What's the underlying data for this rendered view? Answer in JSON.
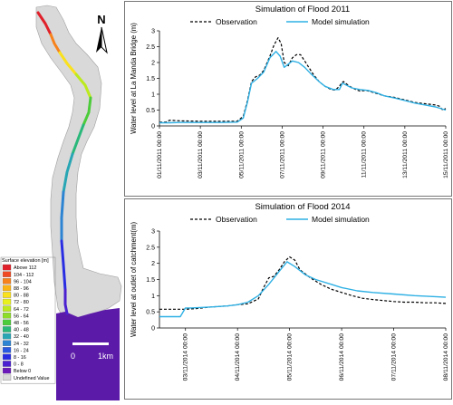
{
  "map": {
    "north_label": "N",
    "legend_title": "Surface elevation [m]",
    "legend": [
      {
        "label": "Above 112",
        "color": "#e0202a"
      },
      {
        "label": "104 - 112",
        "color": "#f04a24"
      },
      {
        "label": "96 - 104",
        "color": "#f7821c"
      },
      {
        "label": "88 - 96",
        "color": "#fab414"
      },
      {
        "label": "80 - 88",
        "color": "#fae11e"
      },
      {
        "label": "72 - 80",
        "color": "#e8f01e"
      },
      {
        "label": "64 - 72",
        "color": "#bcea1e"
      },
      {
        "label": "56 - 64",
        "color": "#8cdc2a"
      },
      {
        "label": "48 - 56",
        "color": "#4ccc3a"
      },
      {
        "label": "40 - 48",
        "color": "#2ab87a"
      },
      {
        "label": "32 - 40",
        "color": "#28a6b4"
      },
      {
        "label": "24 - 32",
        "color": "#2c84d2"
      },
      {
        "label": "16 - 24",
        "color": "#2a5ae0"
      },
      {
        "label": "8 - 16",
        "color": "#2a2ee2"
      },
      {
        "label": "0 - 8",
        "color": "#4a20d0"
      },
      {
        "label": "Below 0",
        "color": "#6a18b8"
      },
      {
        "label": "Undefined Value",
        "color": "#d8d8d8"
      }
    ],
    "scale_start": "0",
    "scale_end": "1km",
    "basin_color": "#d9d9d9",
    "lake_color": "#5c1aa8"
  },
  "chart_data": [
    {
      "type": "line",
      "title": "Simulation of Flood 2011",
      "ylabel": "Water level at La Manda Bridge (m)",
      "xlabel": "",
      "ylim": [
        0,
        3
      ],
      "yticks": [
        "0",
        "0.5",
        "1",
        "1.5",
        "2",
        "2.5",
        "3"
      ],
      "x_ticks": [
        "01/11/2011 00:00",
        "03/11/2011 00:00",
        "05/11/2011 00:00",
        "07/11/2011 00:00",
        "09/11/2011 00:00",
        "11/11/2011 00:00",
        "13/11/2011 00:00",
        "15/11/2011 00:00"
      ],
      "x_unit": "days since 01/11/2011 00:00",
      "xlim": [
        0,
        14
      ],
      "grid": false,
      "legend_position": "top",
      "series": [
        {
          "name": "Observation",
          "style": "dashed",
          "color": "#000000",
          "x": [
            0,
            0.3,
            0.5,
            1,
            2,
            3,
            3.8,
            4.1,
            4.3,
            4.5,
            4.7,
            4.9,
            5.1,
            5.4,
            5.6,
            5.8,
            5.95,
            6.1,
            6.3,
            6.5,
            6.7,
            6.9,
            7.1,
            7.3,
            7.5,
            7.8,
            8.1,
            8.4,
            8.6,
            8.8,
            8.9,
            9.0,
            9.1,
            9.3,
            9.6,
            9.8,
            10.1,
            10.5,
            11,
            11.5,
            12,
            12.5,
            13,
            13.5,
            13.7,
            13.85,
            14
          ],
          "y": [
            0.12,
            0.12,
            0.18,
            0.16,
            0.15,
            0.15,
            0.15,
            0.3,
            0.8,
            1.4,
            1.55,
            1.6,
            1.75,
            2.2,
            2.55,
            2.78,
            2.6,
            2.0,
            1.9,
            2.15,
            2.25,
            2.25,
            2.05,
            1.85,
            1.65,
            1.4,
            1.25,
            1.15,
            1.13,
            1.25,
            1.35,
            1.4,
            1.35,
            1.25,
            1.15,
            1.1,
            1.12,
            1.05,
            0.95,
            0.9,
            0.82,
            0.74,
            0.7,
            0.66,
            0.62,
            0.5,
            0.55
          ]
        },
        {
          "name": "Model simulation",
          "style": "solid",
          "color": "#2eb0e4",
          "x": [
            0,
            0.5,
            1,
            2,
            3,
            3.8,
            4.1,
            4.3,
            4.5,
            4.8,
            5.1,
            5.4,
            5.7,
            5.9,
            6.1,
            6.3,
            6.5,
            6.8,
            7.1,
            7.4,
            7.8,
            8.1,
            8.5,
            8.8,
            8.95,
            9.1,
            9.4,
            9.8,
            10.2,
            10.6,
            11,
            11.5,
            12,
            12.5,
            13,
            13.5,
            14
          ],
          "y": [
            0.1,
            0.1,
            0.11,
            0.11,
            0.11,
            0.12,
            0.25,
            0.75,
            1.35,
            1.5,
            1.7,
            2.15,
            2.35,
            2.2,
            1.85,
            1.95,
            2.05,
            2.0,
            1.85,
            1.65,
            1.4,
            1.25,
            1.15,
            1.15,
            1.35,
            1.3,
            1.2,
            1.15,
            1.12,
            1.05,
            0.95,
            0.88,
            0.8,
            0.72,
            0.66,
            0.6,
            0.5
          ]
        }
      ]
    },
    {
      "type": "line",
      "title": "Simulation of Flood 2014",
      "ylabel": "Water level at outlet of catchment(m)",
      "xlabel": "",
      "ylim": [
        0,
        3
      ],
      "yticks": [
        "0",
        "0.5",
        "1",
        "1.5",
        "2",
        "2.5",
        "3"
      ],
      "x_ticks": [
        "03/11/2014 00:00",
        "04/11/2014 00:00",
        "05/11/2014 00:00",
        "06/11/2014 00:00",
        "07/11/2014 00:00",
        "08/11/2014 00:00"
      ],
      "x_unit": "days since 03/11/2014 00:00",
      "xlim": [
        -0.5,
        5
      ],
      "grid": false,
      "legend_position": "top",
      "series": [
        {
          "name": "Observation",
          "style": "dashed",
          "color": "#000000",
          "x": [
            -0.5,
            -0.2,
            0,
            0.2,
            0.5,
            0.8,
            1.0,
            1.2,
            1.4,
            1.5,
            1.6,
            1.7,
            1.8,
            1.9,
            2.0,
            2.1,
            2.2,
            2.4,
            2.6,
            2.8,
            3.0,
            3.2,
            3.4,
            3.6,
            3.8,
            4.0,
            4.2,
            4.4,
            4.6,
            4.8,
            5.0
          ],
          "y": [
            0.58,
            0.58,
            0.58,
            0.6,
            0.65,
            0.68,
            0.72,
            0.75,
            0.9,
            1.25,
            1.55,
            1.6,
            1.8,
            2.05,
            2.2,
            2.1,
            1.8,
            1.55,
            1.35,
            1.2,
            1.1,
            1.0,
            0.92,
            0.88,
            0.85,
            0.82,
            0.8,
            0.8,
            0.78,
            0.78,
            0.76
          ]
        },
        {
          "name": "Model simulation",
          "style": "solid",
          "color": "#2eb0e4",
          "x": [
            -0.5,
            -0.1,
            0,
            0.1,
            0.5,
            0.8,
            1.0,
            1.2,
            1.4,
            1.6,
            1.8,
            1.95,
            2.1,
            2.3,
            2.5,
            2.8,
            3.0,
            3.3,
            3.6,
            4.0,
            4.4,
            4.8,
            5.0
          ],
          "y": [
            0.35,
            0.35,
            0.62,
            0.62,
            0.65,
            0.68,
            0.72,
            0.8,
            1.0,
            1.35,
            1.75,
            2.05,
            1.9,
            1.65,
            1.5,
            1.35,
            1.25,
            1.15,
            1.1,
            1.05,
            1.0,
            0.97,
            0.95
          ]
        }
      ]
    }
  ]
}
